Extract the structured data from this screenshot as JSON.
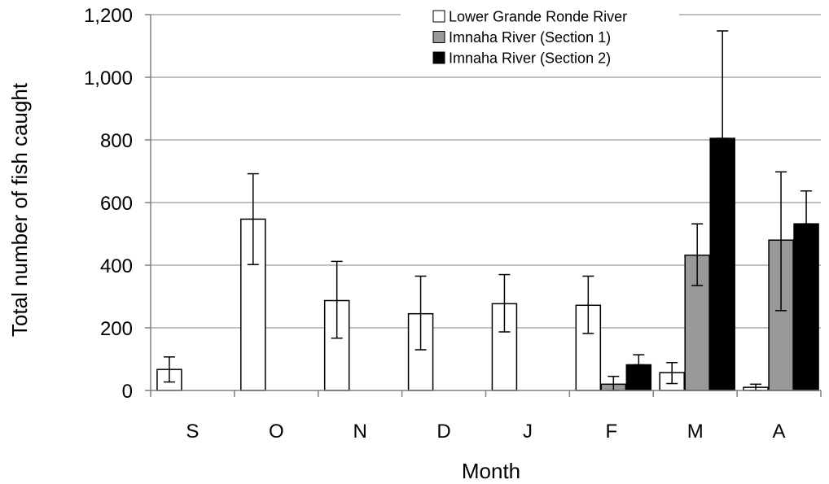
{
  "chart_data": {
    "type": "bar",
    "title": "",
    "xlabel": "Month",
    "ylabel": "Total number of fish caught",
    "ylim": [
      0,
      1200
    ],
    "yticks": [
      0,
      200,
      400,
      600,
      800,
      1000,
      1200
    ],
    "ytick_labels": [
      "0",
      "200",
      "400",
      "600",
      "800",
      "1,000",
      "1,200"
    ],
    "grid": "horizontal",
    "legend_position": "top-right",
    "categories": [
      "S",
      "O",
      "N",
      "D",
      "J",
      "F",
      "M",
      "A"
    ],
    "series": [
      {
        "name": "Lower Grande Ronde River",
        "color": "#ffffff",
        "values": [
          67,
          547,
          287,
          245,
          277,
          272,
          57,
          10
        ],
        "err_low": [
          27,
          402,
          167,
          130,
          187,
          182,
          22,
          0
        ],
        "err_high": [
          107,
          692,
          412,
          365,
          370,
          365,
          89,
          20
        ]
      },
      {
        "name": "Imnaha River (Section 1)",
        "color": "#999999",
        "values": [
          null,
          null,
          null,
          null,
          null,
          20,
          432,
          480
        ],
        "err_low": [
          null,
          null,
          null,
          null,
          null,
          0,
          335,
          255
        ],
        "err_high": [
          null,
          null,
          null,
          null,
          null,
          45,
          532,
          698
        ]
      },
      {
        "name": "Imnaha River (Section 2)",
        "color": "#000000",
        "values": [
          null,
          null,
          null,
          null,
          null,
          82,
          805,
          532
        ],
        "err_low": [
          null,
          null,
          null,
          null,
          null,
          82,
          805,
          532
        ],
        "err_high": [
          null,
          null,
          null,
          null,
          null,
          114,
          1148,
          637
        ]
      }
    ]
  }
}
